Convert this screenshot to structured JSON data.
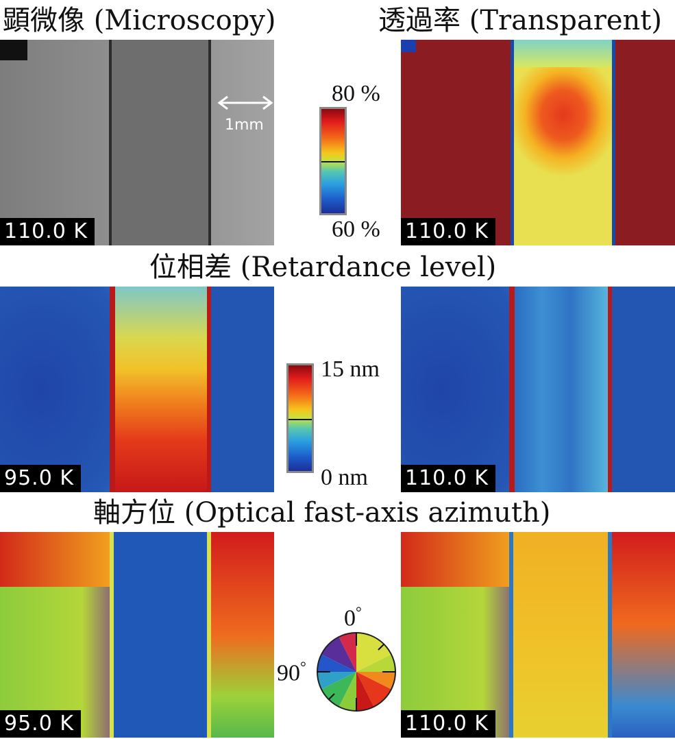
{
  "sections": {
    "microscopy_title": "顕微像 (Microscopy)",
    "transparent_title": "透過率 (Transparent)",
    "retardance_title": "位相差 (Retardance level)",
    "azimuth_title": "軸方位 (Optical fast-axis azimuth)"
  },
  "scales": {
    "transmittance": {
      "max_label": "80 %",
      "min_label": "60 %"
    },
    "retardance": {
      "max_label": "15 nm",
      "min_label": "0 nm"
    },
    "azimuth": {
      "zero_label": "0",
      "ninety_label": "90",
      "degree_symbol": "°"
    }
  },
  "scale_bar_label": "1mm",
  "panels": {
    "microscopy": {
      "temperature": "110.0 K"
    },
    "transparent": {
      "temperature": "110.0 K"
    },
    "retardance_left": {
      "temperature": "95.0 K"
    },
    "retardance_right": {
      "temperature": "110.0 K"
    },
    "azimuth_left": {
      "temperature": "95.0 K"
    },
    "azimuth_right": {
      "temperature": "110.0 K"
    }
  },
  "colors": {
    "jet_low": "#1a2f9a",
    "jet_high": "#b01818",
    "transmittance_bg": "#8a1c22",
    "retardance_bg": "#1f4fae",
    "microscopy_gray": "#8f8f8f"
  }
}
